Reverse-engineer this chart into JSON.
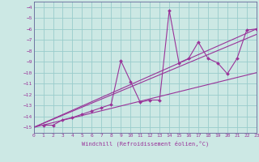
{
  "xlabel": "Windchill (Refroidissement éolien,°C)",
  "bg_color": "#cce8e4",
  "grid_color": "#99cccc",
  "line_color": "#993399",
  "spine_color": "#666699",
  "xlim": [
    0,
    23
  ],
  "ylim": [
    -15.5,
    -3.5
  ],
  "xticks": [
    0,
    1,
    2,
    3,
    4,
    5,
    6,
    7,
    8,
    9,
    10,
    11,
    12,
    13,
    14,
    15,
    16,
    17,
    18,
    19,
    20,
    21,
    22,
    23
  ],
  "yticks": [
    -15,
    -14,
    -13,
    -12,
    -11,
    -10,
    -9,
    -8,
    -7,
    -6,
    -5,
    -4
  ],
  "scatter_x": [
    1,
    2,
    3,
    4,
    5,
    6,
    7,
    8,
    9,
    10,
    11,
    12,
    13,
    14,
    15,
    16,
    17,
    18,
    19,
    20,
    21,
    22,
    23
  ],
  "scatter_y": [
    -14.8,
    -14.8,
    -14.3,
    -14.1,
    -13.8,
    -13.5,
    -13.2,
    -12.9,
    -8.9,
    -10.8,
    -12.7,
    -12.5,
    -12.5,
    -4.3,
    -9.1,
    -8.7,
    -7.2,
    -8.7,
    -9.1,
    -10.1,
    -8.7,
    -6.1,
    -6.0
  ],
  "line1_x": [
    0,
    23
  ],
  "line1_y": [
    -15.0,
    -6.0
  ],
  "line2_x": [
    0,
    23
  ],
  "line2_y": [
    -15.0,
    -6.5
  ],
  "line3_x": [
    0,
    23
  ],
  "line3_y": [
    -15.0,
    -10.0
  ]
}
